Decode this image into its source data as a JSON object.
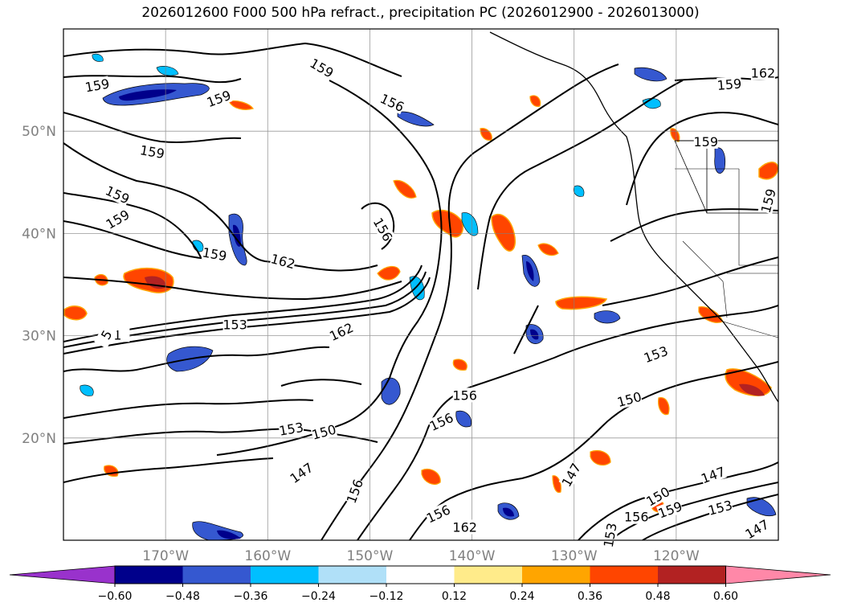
{
  "figure": {
    "title": "2026012600 F000 500 hPa refract., precipitation PC (2026012900 - 2026013000)"
  },
  "map": {
    "lon_range": [
      -180,
      -110
    ],
    "lat_range": [
      10,
      60
    ],
    "longitude_ticks": [
      {
        "value": -170,
        "label": "170°W"
      },
      {
        "value": -160,
        "label": "160°W"
      },
      {
        "value": -150,
        "label": "150°W"
      },
      {
        "value": -140,
        "label": "140°W"
      },
      {
        "value": -130,
        "label": "130°W"
      },
      {
        "value": -120,
        "label": "120°W"
      }
    ],
    "latitude_ticks": [
      {
        "value": 20,
        "label": "20°N"
      },
      {
        "value": 30,
        "label": "30°N"
      },
      {
        "value": 40,
        "label": "40°N"
      },
      {
        "value": 50,
        "label": "50°N"
      }
    ],
    "grid": true
  },
  "contour_labels": [
    {
      "text": "159",
      "lon": -176.7,
      "lat": 54.5,
      "rot": -10
    },
    {
      "text": "159",
      "lon": -164.8,
      "lat": 53.2,
      "rot": -20
    },
    {
      "text": "159",
      "lon": -154.7,
      "lat": 56.2,
      "rot": 30
    },
    {
      "text": "159",
      "lon": -171.3,
      "lat": 48.0,
      "rot": 10
    },
    {
      "text": "159",
      "lon": -174.7,
      "lat": 43.8,
      "rot": 25
    },
    {
      "text": "159",
      "lon": -174.7,
      "lat": 41.4,
      "rot": -30
    },
    {
      "text": "159",
      "lon": -165.2,
      "lat": 38.0,
      "rot": 10
    },
    {
      "text": "162",
      "lon": -158.5,
      "lat": 37.3,
      "rot": 15
    },
    {
      "text": "156",
      "lon": -147.8,
      "lat": 52.8,
      "rot": 25
    },
    {
      "text": "156",
      "lon": -148.7,
      "lat": 40.4,
      "rot": 60
    },
    {
      "text": "153",
      "lon": -163.2,
      "lat": 31.1,
      "rot": 0
    },
    {
      "text": "162",
      "lon": -152.8,
      "lat": 30.4,
      "rot": -25
    },
    {
      "text": "153",
      "lon": -157.7,
      "lat": 20.9,
      "rot": -10
    },
    {
      "text": "150",
      "lon": -154.5,
      "lat": 20.6,
      "rot": -15
    },
    {
      "text": "147",
      "lon": -156.7,
      "lat": 16.6,
      "rot": -35
    },
    {
      "text": "156",
      "lon": -143.0,
      "lat": 21.6,
      "rot": -25
    },
    {
      "text": "156",
      "lon": -140.7,
      "lat": 24.2,
      "rot": 0
    },
    {
      "text": "150",
      "lon": -124.6,
      "lat": 23.8,
      "rot": -15
    },
    {
      "text": "153",
      "lon": -122.0,
      "lat": 28.2,
      "rot": -20
    },
    {
      "text": "147",
      "lon": -130.3,
      "lat": 16.4,
      "rot": -60
    },
    {
      "text": "147",
      "lon": -116.4,
      "lat": 16.4,
      "rot": -20
    },
    {
      "text": "150",
      "lon": -121.8,
      "lat": 14.3,
      "rot": -30
    },
    {
      "text": "156",
      "lon": -143.3,
      "lat": 12.6,
      "rot": -25
    },
    {
      "text": "162",
      "lon": -140.7,
      "lat": 11.3,
      "rot": 0
    },
    {
      "text": "156",
      "lon": -123.9,
      "lat": 12.3,
      "rot": 0
    },
    {
      "text": "159",
      "lon": -120.6,
      "lat": 13.0,
      "rot": -20
    },
    {
      "text": "153",
      "lon": -115.7,
      "lat": 13.2,
      "rot": -15
    },
    {
      "text": "147",
      "lon": -112.1,
      "lat": 11.1,
      "rot": -30
    },
    {
      "text": "153",
      "lon": -126.5,
      "lat": 10.5,
      "rot": -80
    },
    {
      "text": "159",
      "lon": -114.8,
      "lat": 54.6,
      "rot": -5
    },
    {
      "text": "162",
      "lon": -111.5,
      "lat": 55.7,
      "rot": 0
    },
    {
      "text": "159",
      "lon": -117.1,
      "lat": 49.0,
      "rot": 0
    },
    {
      "text": "159",
      "lon": -111.0,
      "lat": 43.2,
      "rot": -75
    },
    {
      "text": "156",
      "lon": -151.5,
      "lat": 14.8,
      "rot": -70
    },
    {
      "text": "1",
      "lon": -174.7,
      "lat": 30.1,
      "rot": 0
    },
    {
      "text": "5",
      "lon": -175.8,
      "lat": 30.1,
      "rot": -60
    }
  ],
  "colorbar": {
    "tick_labels": [
      "−0.60",
      "−0.48",
      "−0.36",
      "−0.24",
      "−0.12",
      "0.12",
      "0.24",
      "0.36",
      "0.48",
      "0.60"
    ],
    "colors": [
      "#9932cc",
      "#00008b",
      "#3558d0",
      "#00bfff",
      "#b0e0f8",
      "#ffffff",
      "#ffeb8a",
      "#ffa500",
      "#ff4500",
      "#b22222",
      "#ff88a8"
    ]
  }
}
